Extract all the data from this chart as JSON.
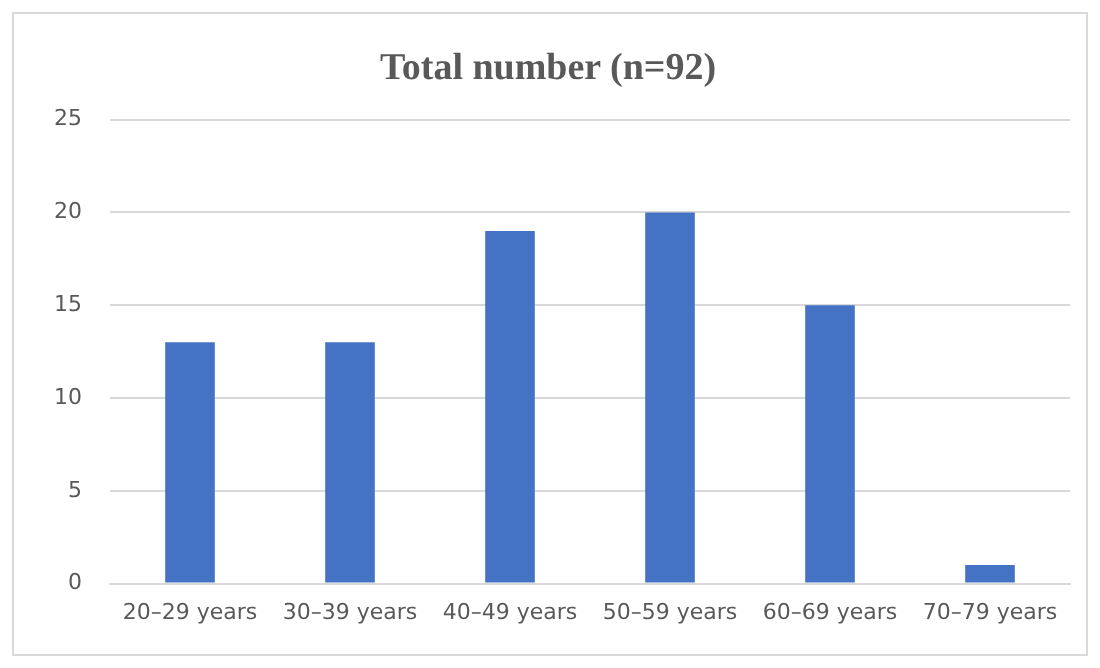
{
  "chart_data": {
    "type": "bar",
    "title": "Total number (n=92)",
    "categories": [
      "20–29 years",
      "30–39 years",
      "40–49 years",
      "50–59 years",
      "60–69 years",
      "70–79 years"
    ],
    "values": [
      13,
      13,
      19,
      20,
      15,
      1
    ],
    "color": "#4472c4",
    "ylim": [
      0,
      25
    ],
    "yticks": [
      0,
      5,
      10,
      15,
      20,
      25
    ],
    "grid": "y",
    "legend": false
  }
}
